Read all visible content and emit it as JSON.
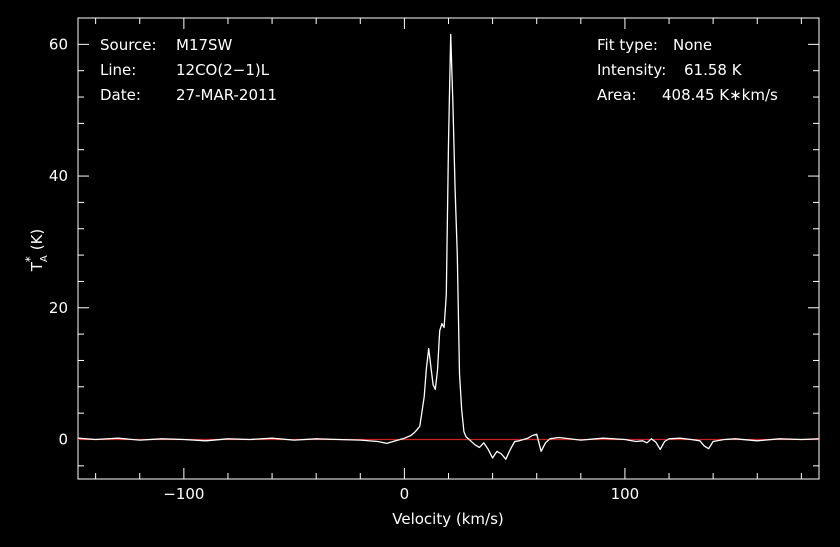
{
  "chart_data": {
    "type": "line",
    "title": "",
    "xlabel": "Velocity (km/s)",
    "ylabel": {
      "base": "T",
      "sub": "A",
      "sup": "*",
      "unit": "(K)"
    },
    "xlim": [
      -148,
      188
    ],
    "ylim": [
      -6,
      64
    ],
    "xticks": [
      -100,
      0,
      100
    ],
    "xtick_labels": [
      "−100",
      "0",
      "100"
    ],
    "yticks": [
      0,
      20,
      40,
      60
    ],
    "ytick_labels": [
      "0",
      "20",
      "40",
      "60"
    ],
    "grid": false,
    "info_left": [
      {
        "key": "Source:",
        "value": "M17SW"
      },
      {
        "key": "Line:",
        "value": "12CO(2−1)L"
      },
      {
        "key": "Date:",
        "value": "27-MAR-2011"
      }
    ],
    "info_right": [
      {
        "key": "Fit type:",
        "value": "None"
      },
      {
        "key": "Intensity:",
        "value": "61.58 K"
      },
      {
        "key": "Area:",
        "value": "408.45 K∗km/s"
      }
    ],
    "baseline": {
      "y": 0,
      "color": "#cc2222"
    },
    "series": [
      {
        "color": "#ffffff",
        "x": [
          -148,
          -140,
          -130,
          -120,
          -110,
          -100,
          -90,
          -80,
          -70,
          -60,
          -50,
          -40,
          -30,
          -20,
          -12,
          -8,
          -4,
          0,
          3,
          5,
          7,
          9,
          10,
          11,
          12,
          13,
          14,
          15,
          16,
          17,
          18,
          19,
          20,
          21,
          22,
          23,
          24,
          25,
          26,
          27,
          28,
          30,
          32,
          34,
          36,
          38,
          40,
          42,
          44,
          46,
          48,
          50,
          52,
          54,
          56,
          58,
          60,
          62,
          64,
          66,
          70,
          80,
          90,
          100,
          105,
          108,
          110,
          112,
          114,
          116,
          118,
          120,
          125,
          130,
          134,
          136,
          138,
          140,
          145,
          150,
          160,
          170,
          180,
          188
        ],
        "y": [
          0.2,
          0.0,
          0.2,
          -0.1,
          0.1,
          0.0,
          -0.2,
          0.1,
          0.0,
          0.2,
          -0.1,
          0.1,
          0.0,
          -0.1,
          -0.3,
          -0.6,
          -0.2,
          0.2,
          0.6,
          1.2,
          2.0,
          6.5,
          10.8,
          13.8,
          11.0,
          8.3,
          7.6,
          10.5,
          16.5,
          17.6,
          17.0,
          22.0,
          45.0,
          61.5,
          51.0,
          38.0,
          28.0,
          10.0,
          4.5,
          1.2,
          0.4,
          -0.2,
          -0.8,
          -1.2,
          -0.5,
          -1.5,
          -2.8,
          -1.8,
          -2.2,
          -3.0,
          -1.5,
          -0.3,
          -0.2,
          0.0,
          0.2,
          0.6,
          0.8,
          -1.8,
          -0.5,
          0.1,
          0.3,
          -0.1,
          0.2,
          0.0,
          -0.3,
          -0.2,
          -0.5,
          0.1,
          -0.4,
          -1.5,
          -0.3,
          0.1,
          0.2,
          0.0,
          -0.2,
          -1.0,
          -1.4,
          -0.3,
          0.0,
          0.1,
          -0.2,
          0.1,
          0.0,
          0.1
        ]
      }
    ]
  }
}
